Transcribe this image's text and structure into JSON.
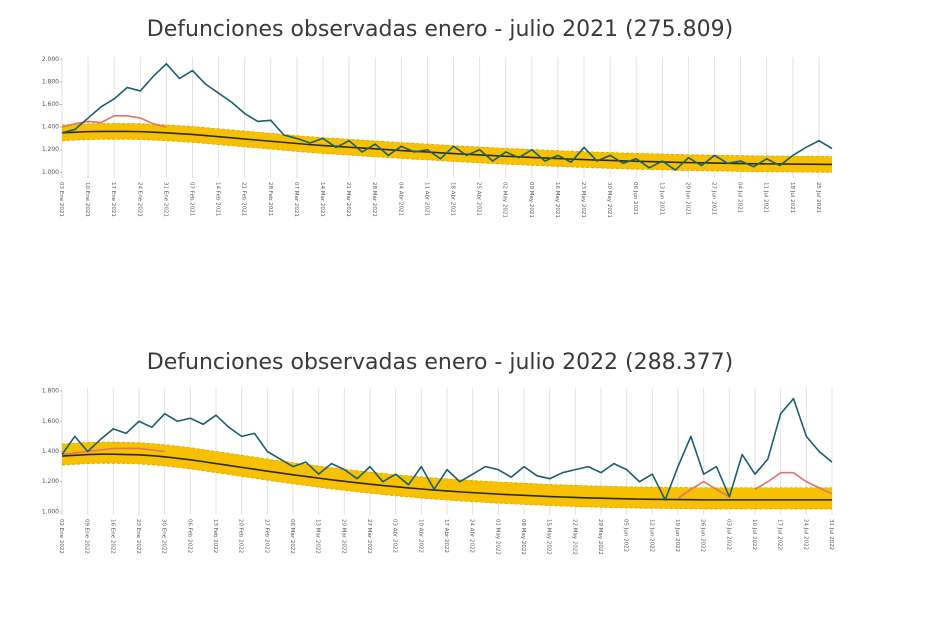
{
  "chart_data": [
    {
      "type": "line",
      "title": "Defunciones observadas enero - julio 2021 (275.809)",
      "categories": [
        "03 Ene 2021",
        null,
        "10 Ene 2021",
        null,
        "17 Ene 2021",
        null,
        "24 Ene 2021",
        null,
        "31 Ene 2021",
        null,
        "07 Feb 2021",
        null,
        "14 Feb 2021",
        null,
        "21 Feb 2021",
        null,
        "28 Feb 2021",
        null,
        "07 Mar 2021",
        null,
        "14 Mar 2021",
        null,
        "21 Mar 2021",
        null,
        "28 Mar 2021",
        null,
        "04 Abr 2021",
        null,
        "11 Abr 2021",
        null,
        "18 Abr 2021",
        null,
        "25 Abr 2021",
        null,
        "02 May 2021",
        null,
        "09 May 2021",
        null,
        "16 May 2021",
        null,
        "23 May 2021",
        null,
        "30 May 2021",
        null,
        "06 Jun 2021",
        null,
        "13 Jun 2021",
        null,
        "20 Jun 2021",
        null,
        "27 Jun 2021",
        null,
        "04 Jul 2021",
        null,
        "11 Jul 2021",
        null,
        "18 Jul 2021",
        null,
        "25 Jul 2021",
        null
      ],
      "ylim": [
        950,
        2020
      ],
      "yticks": [
        {
          "value": 1000,
          "label": "1.000"
        },
        {
          "value": 1200,
          "label": "1.200"
        },
        {
          "value": 1400,
          "label": "1.400"
        },
        {
          "value": 1600,
          "label": "1.600"
        },
        {
          "value": 1800,
          "label": "1.800"
        },
        {
          "value": 2000,
          "label": "2.000"
        }
      ],
      "band": {
        "color": "#f7c100",
        "lower": [
          1280,
          1285,
          1290,
          1292,
          1292,
          1292,
          1290,
          1285,
          1280,
          1272,
          1265,
          1255,
          1245,
          1235,
          1225,
          1215,
          1205,
          1195,
          1185,
          1175,
          1167,
          1160,
          1152,
          1145,
          1138,
          1130,
          1123,
          1116,
          1110,
          1103,
          1096,
          1090,
          1084,
          1078,
          1072,
          1067,
          1062,
          1057,
          1052,
          1047,
          1043,
          1039,
          1035,
          1031,
          1028,
          1025,
          1022,
          1019,
          1016,
          1014,
          1012,
          1010,
          1008,
          1006,
          1005,
          1004,
          1003,
          1002,
          1001,
          1000
        ],
        "upper": [
          1420,
          1425,
          1430,
          1432,
          1432,
          1432,
          1430,
          1425,
          1420,
          1412,
          1405,
          1395,
          1385,
          1375,
          1365,
          1355,
          1345,
          1335,
          1325,
          1315,
          1307,
          1300,
          1292,
          1285,
          1278,
          1270,
          1263,
          1256,
          1250,
          1243,
          1236,
          1230,
          1224,
          1218,
          1212,
          1207,
          1202,
          1197,
          1192,
          1187,
          1183,
          1179,
          1175,
          1171,
          1168,
          1165,
          1162,
          1159,
          1156,
          1154,
          1152,
          1150,
          1148,
          1146,
          1145,
          1144,
          1143,
          1142,
          1141,
          1140
        ]
      },
      "series": [
        {
          "color": "#2a2a2a",
          "values": [
            1350,
            1355,
            1360,
            1362,
            1362,
            1362,
            1360,
            1355,
            1350,
            1342,
            1335,
            1325,
            1315,
            1305,
            1295,
            1285,
            1275,
            1265,
            1255,
            1245,
            1237,
            1230,
            1222,
            1215,
            1208,
            1200,
            1193,
            1186,
            1180,
            1173,
            1166,
            1160,
            1154,
            1148,
            1142,
            1137,
            1132,
            1127,
            1122,
            1117,
            1113,
            1109,
            1105,
            1101,
            1098,
            1095,
            1092,
            1089,
            1086,
            1084,
            1082,
            1080,
            1078,
            1076,
            1075,
            1074,
            1073,
            1072,
            1071,
            1070
          ]
        },
        {
          "color": "#e0736a",
          "values": [
            1400,
            1430,
            1450,
            1440,
            1500,
            1500,
            1480,
            1430,
            1400,
            null,
            null,
            null,
            null,
            null,
            null,
            null,
            null,
            null,
            null,
            null,
            null,
            null,
            null,
            null,
            null,
            null,
            null,
            null,
            null,
            null,
            null,
            null,
            null,
            null,
            null,
            null,
            null,
            null,
            null,
            null,
            null,
            null,
            null,
            null,
            null,
            null,
            null,
            null,
            null,
            null,
            null,
            null,
            null,
            null,
            null,
            null,
            null,
            null,
            null,
            null
          ]
        },
        {
          "color": "#1b5f6f",
          "values": [
            1350,
            1380,
            1480,
            1580,
            1650,
            1750,
            1720,
            1850,
            1960,
            1830,
            1900,
            1780,
            1700,
            1620,
            1520,
            1450,
            1460,
            1330,
            1300,
            1260,
            1300,
            1220,
            1280,
            1180,
            1250,
            1150,
            1230,
            1180,
            1200,
            1120,
            1230,
            1150,
            1200,
            1100,
            1180,
            1130,
            1200,
            1100,
            1150,
            1090,
            1220,
            1100,
            1150,
            1080,
            1120,
            1040,
            1100,
            1020,
            1130,
            1060,
            1150,
            1080,
            1100,
            1050,
            1120,
            1060,
            1150,
            1220,
            1280,
            1210
          ]
        }
      ]
    },
    {
      "type": "line",
      "title": "Defunciones observadas enero - julio 2022 (288.377)",
      "categories": [
        "02 Ene 2022",
        null,
        "09 Ene 2022",
        null,
        "16 Ene 2022",
        null,
        "23 Ene 2022",
        null,
        "30 Ene 2022",
        null,
        "06 Feb 2022",
        null,
        "13 Feb 2022",
        null,
        "20 Feb 2022",
        null,
        "27 Feb 2022",
        null,
        "06 Mar 2022",
        null,
        "13 Mar 2022",
        null,
        "20 Mar 2022",
        null,
        "27 Mar 2022",
        null,
        "03 Abr 2022",
        null,
        "10 Abr 2022",
        null,
        "17 Abr 2022",
        null,
        "24 Abr 2022",
        null,
        "01 May 2022",
        null,
        "08 May 2022",
        null,
        "15 May 2022",
        null,
        "22 May 2022",
        null,
        "29 May 2022",
        null,
        "05 Jun 2022",
        null,
        "12 Jun 2022",
        null,
        "19 Jun 2022",
        null,
        "26 Jun 2022",
        null,
        "03 Jul 2022",
        null,
        "10 Jul 2022",
        null,
        "17 Jul 2022",
        null,
        "24 Jul 2022",
        null,
        "31 Jul 2022"
      ],
      "ylim": [
        980,
        1820
      ],
      "yticks": [
        {
          "value": 1000,
          "label": "1.000"
        },
        {
          "value": 1200,
          "label": "1.200"
        },
        {
          "value": 1400,
          "label": "1.400"
        },
        {
          "value": 1600,
          "label": "1.600"
        },
        {
          "value": 1800,
          "label": "1.800"
        }
      ],
      "band": {
        "color": "#f7c100",
        "lower": [
          1310,
          1315,
          1320,
          1322,
          1322,
          1320,
          1318,
          1312,
          1305,
          1295,
          1285,
          1273,
          1260,
          1248,
          1235,
          1223,
          1210,
          1198,
          1186,
          1175,
          1164,
          1153,
          1143,
          1133,
          1124,
          1115,
          1107,
          1099,
          1092,
          1085,
          1079,
          1073,
          1068,
          1063,
          1058,
          1054,
          1050,
          1046,
          1042,
          1039,
          1036,
          1033,
          1031,
          1029,
          1027,
          1025,
          1024,
          1023,
          1022,
          1021,
          1020,
          1020,
          1020,
          1020,
          1020,
          1020,
          1020,
          1020,
          1020,
          1020,
          1020
        ],
        "upper": [
          1450,
          1455,
          1460,
          1462,
          1462,
          1460,
          1458,
          1452,
          1445,
          1435,
          1425,
          1413,
          1400,
          1388,
          1375,
          1363,
          1350,
          1338,
          1326,
          1315,
          1304,
          1293,
          1283,
          1273,
          1264,
          1255,
          1247,
          1239,
          1232,
          1225,
          1219,
          1213,
          1208,
          1203,
          1198,
          1194,
          1190,
          1186,
          1182,
          1179,
          1176,
          1173,
          1171,
          1169,
          1167,
          1165,
          1164,
          1163,
          1162,
          1161,
          1160,
          1160,
          1160,
          1160,
          1160,
          1160,
          1160,
          1160,
          1160,
          1160,
          1160
        ]
      },
      "series": [
        {
          "color": "#2a2a2a",
          "values": [
            1370,
            1375,
            1380,
            1382,
            1382,
            1380,
            1378,
            1372,
            1365,
            1355,
            1345,
            1333,
            1320,
            1308,
            1295,
            1283,
            1270,
            1258,
            1246,
            1235,
            1224,
            1213,
            1203,
            1193,
            1184,
            1175,
            1167,
            1159,
            1152,
            1145,
            1139,
            1133,
            1128,
            1123,
            1118,
            1114,
            1110,
            1106,
            1102,
            1099,
            1096,
            1093,
            1091,
            1089,
            1087,
            1085,
            1084,
            1083,
            1082,
            1081,
            1080,
            1080,
            1080,
            1080,
            1080,
            1080,
            1080,
            1080,
            1080,
            1080,
            1080
          ]
        },
        {
          "color": "#e0736a",
          "values": [
            1380,
            1390,
            1400,
            1410,
            1420,
            1420,
            1420,
            1410,
            1400,
            null,
            null,
            null,
            null,
            null,
            null,
            null,
            null,
            null,
            null,
            null,
            null,
            null,
            null,
            null,
            null,
            null,
            null,
            null,
            null,
            null,
            null,
            null,
            null,
            null,
            null,
            null,
            null,
            null,
            null,
            null,
            null,
            null,
            null,
            null,
            null,
            null,
            null,
            null,
            1090,
            1150,
            1200,
            1150,
            1100,
            null,
            1150,
            1200,
            1260,
            1260,
            1200,
            1160,
            1120
          ]
        },
        {
          "color": "#1b5f6f",
          "values": [
            1380,
            1500,
            1400,
            1480,
            1550,
            1520,
            1600,
            1560,
            1650,
            1600,
            1620,
            1580,
            1640,
            1560,
            1500,
            1520,
            1400,
            1350,
            1300,
            1330,
            1250,
            1320,
            1280,
            1220,
            1300,
            1200,
            1250,
            1180,
            1300,
            1150,
            1280,
            1200,
            1250,
            1300,
            1280,
            1230,
            1300,
            1240,
            1220,
            1260,
            1280,
            1300,
            1260,
            1320,
            1280,
            1200,
            1250,
            1080,
            1300,
            1500,
            1250,
            1300,
            1100,
            1380,
            1250,
            1350,
            1650,
            1750,
            1500,
            1400,
            1330
          ]
        }
      ]
    }
  ]
}
